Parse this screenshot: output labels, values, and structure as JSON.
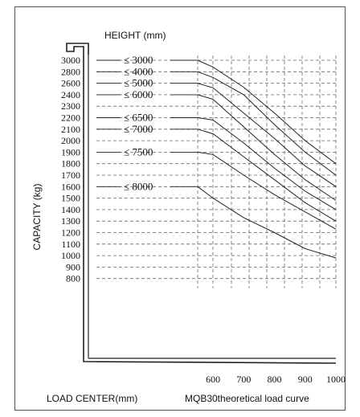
{
  "chart_data": {
    "type": "line",
    "title": "MQB30theoretical load curve",
    "height_header": "HEIGHT (mm)",
    "xlabel": "LOAD CENTER(mm)",
    "ylabel": "CAPACITY (kg)",
    "x_ticks": [
      600,
      700,
      800,
      900,
      1000
    ],
    "y_ticks": [
      3000,
      2800,
      2600,
      2400,
      2300,
      2200,
      2100,
      2000,
      1900,
      1800,
      1700,
      1600,
      1500,
      1400,
      1300,
      1200,
      1100,
      1000,
      900,
      800
    ],
    "xlim": [
      550,
      1000
    ],
    "grid": true,
    "series": [
      {
        "name": "≤ 3000",
        "label_at": 3000,
        "x": [
          550,
          600,
          700,
          800,
          900,
          1000
        ],
        "y": [
          3000,
          2880,
          2530,
          2240,
          2000,
          1800
        ]
      },
      {
        "name": "≤ 4000",
        "label_at": 2800,
        "x": [
          550,
          600,
          700,
          800,
          900,
          1000
        ],
        "y": [
          2800,
          2700,
          2400,
          2140,
          1900,
          1700
        ]
      },
      {
        "name": "≤ 5000",
        "label_at": 2600,
        "x": [
          550,
          600,
          700,
          800,
          900,
          1000
        ],
        "y": [
          2600,
          2520,
          2240,
          2020,
          1780,
          1600
        ]
      },
      {
        "name": "≤ 6000",
        "label_at": 2400,
        "x": [
          550,
          600,
          700,
          800,
          900,
          1000
        ],
        "y": [
          2400,
          2360,
          2120,
          1880,
          1660,
          1480
        ]
      },
      {
        "name": "≤ 6500",
        "label_at": 2200,
        "x": [
          550,
          600,
          700,
          800,
          900,
          1000
        ],
        "y": [
          2200,
          2180,
          1980,
          1760,
          1560,
          1400
        ]
      },
      {
        "name": "≤ 7000",
        "label_at": 2100,
        "x": [
          550,
          600,
          700,
          800,
          900,
          1000
        ],
        "y": [
          2100,
          2060,
          1860,
          1660,
          1460,
          1300
        ]
      },
      {
        "name": "≤ 7500",
        "label_at": 1900,
        "x": [
          550,
          600,
          700,
          800,
          900,
          1000
        ],
        "y": [
          1900,
          1880,
          1700,
          1530,
          1380,
          1230
        ]
      },
      {
        "name": "≤ 8000",
        "label_at": 1600,
        "x": [
          550,
          600,
          700,
          800,
          900,
          1000
        ],
        "y": [
          1600,
          1500,
          1330,
          1200,
          1060,
          980
        ]
      }
    ]
  }
}
